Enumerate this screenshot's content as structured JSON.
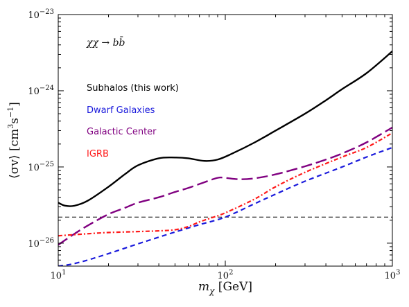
{
  "chart_data": {
    "type": "line",
    "xlabel_symbol": "m",
    "xlabel_sub": "χ",
    "xlabel_unit": " [GeV]",
    "ylabel_main": "⟨σv⟩ [cm",
    "ylabel_sup1": "3",
    "ylabel_mid": "s",
    "ylabel_sup2": "−1",
    "ylabel_end": "]",
    "xscale": "log",
    "yscale": "log",
    "xlim": [
      10,
      1000
    ],
    "ylim": [
      5e-27,
      1e-23
    ],
    "x_ticks": [
      {
        "value": 10,
        "base": "10",
        "exp": "1"
      },
      {
        "value": 100,
        "base": "10",
        "exp": "2"
      },
      {
        "value": 1000,
        "base": "10",
        "exp": "3"
      }
    ],
    "y_ticks": [
      {
        "value": 1e-26,
        "base": "10",
        "exp": "−26"
      },
      {
        "value": 1e-25,
        "base": "10",
        "exp": "−25"
      },
      {
        "value": 1e-24,
        "base": "10",
        "exp": "−24"
      },
      {
        "value": 1e-23,
        "base": "10",
        "exp": "−23"
      }
    ],
    "annotation": "χχ → bb̄",
    "reference_line": {
      "y": 2.2e-26,
      "style": "dashed",
      "color": "#000000"
    },
    "series": [
      {
        "name": "Subhalos (this work)",
        "color": "#000000",
        "style": "solid",
        "x": [
          10,
          11,
          12.5,
          15,
          20,
          25,
          30,
          40,
          50,
          60,
          75,
          90,
          110,
          150,
          200,
          300,
          400,
          500,
          700,
          1000
        ],
        "y": [
          3.4e-26,
          3.1e-26,
          3.1e-26,
          3.6e-26,
          5.5e-26,
          8e-26,
          1.05e-25,
          1.3e-25,
          1.33e-25,
          1.3e-25,
          1.2e-25,
          1.25e-25,
          1.5e-25,
          2.1e-25,
          3e-25,
          5e-25,
          7.5e-25,
          1.05e-24,
          1.7e-24,
          3.3e-24
        ]
      },
      {
        "name": "Dwarf Galaxies",
        "color": "#1a1adc",
        "style": "dashed",
        "x": [
          10,
          12,
          15,
          20,
          30,
          40,
          50,
          70,
          100,
          150,
          200,
          300,
          500,
          700,
          1000
        ],
        "y": [
          5e-27,
          5.3e-27,
          6e-27,
          7.3e-27,
          9.8e-27,
          1.2e-26,
          1.4e-26,
          1.75e-26,
          2.2e-26,
          3.3e-26,
          4.4e-26,
          6.5e-26,
          1e-25,
          1.35e-25,
          1.8e-25
        ]
      },
      {
        "name": "Galactic Center",
        "color": "#800080",
        "style": "longdash",
        "x": [
          10,
          12,
          15,
          20,
          25,
          30,
          40,
          50,
          60,
          75,
          90,
          100,
          120,
          150,
          200,
          300,
          400,
          500,
          700,
          1000
        ],
        "y": [
          9.5e-27,
          1.25e-26,
          1.7e-26,
          2.4e-26,
          2.9e-26,
          3.4e-26,
          4e-26,
          4.7e-26,
          5.3e-26,
          6.3e-26,
          7.2e-26,
          7.2e-26,
          6.9e-26,
          7.1e-26,
          8e-26,
          1.02e-25,
          1.25e-25,
          1.5e-25,
          2.1e-25,
          3.3e-25
        ]
      },
      {
        "name": "IGRB",
        "color": "#ff1a1a",
        "style": "dashdot",
        "x": [
          10,
          15,
          20,
          30,
          40,
          50,
          60,
          70,
          80,
          100,
          150,
          200,
          300,
          500,
          700,
          1000
        ],
        "y": [
          1.25e-26,
          1.33e-26,
          1.38e-26,
          1.42e-26,
          1.45e-26,
          1.5e-26,
          1.65e-26,
          1.9e-26,
          2.1e-26,
          2.5e-26,
          3.8e-26,
          5.5e-26,
          8.5e-26,
          1.35e-25,
          1.8e-25,
          2.8e-25
        ]
      }
    ]
  }
}
